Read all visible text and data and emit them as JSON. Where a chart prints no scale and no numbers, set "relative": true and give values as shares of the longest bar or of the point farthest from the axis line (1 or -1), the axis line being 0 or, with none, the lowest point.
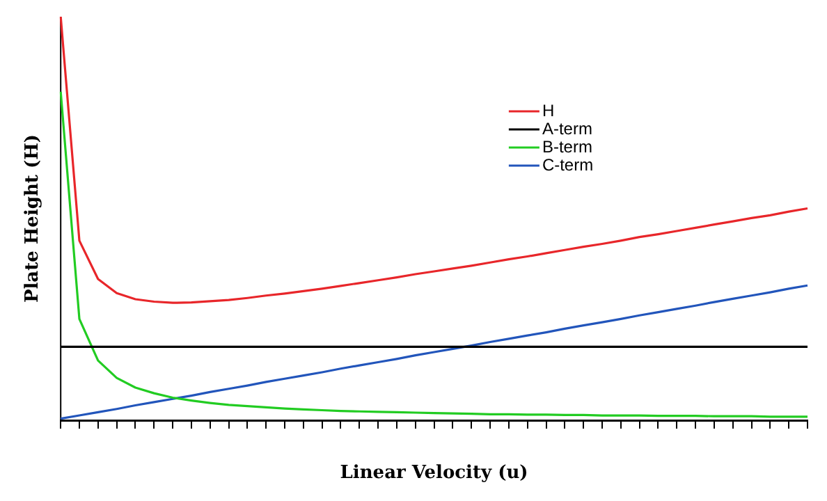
{
  "chart_data": {
    "type": "line",
    "relative": true,
    "xlabel": "Linear Velocity (u)",
    "ylabel": "Plate Height (H)",
    "legend": "top right",
    "marker": "none",
    "categories": [
      null,
      null,
      null,
      null,
      null,
      null,
      null,
      null,
      null,
      null,
      null,
      null,
      null,
      null,
      null,
      null,
      null,
      null,
      null,
      null,
      null,
      null,
      null,
      null,
      null,
      null,
      null,
      null,
      null,
      null,
      null,
      null,
      null,
      null,
      null,
      null,
      null,
      null,
      null,
      null,
      null
    ],
    "series": [
      {
        "name": "H",
        "color": "#e8262a",
        "values": [
          1.0,
          0.445,
          0.35,
          0.315,
          0.3,
          0.294,
          0.291,
          0.292,
          0.295,
          0.298,
          0.303,
          0.309,
          0.314,
          0.32,
          0.326,
          0.333,
          0.34,
          0.347,
          0.354,
          0.362,
          0.369,
          0.376,
          0.383,
          0.391,
          0.399,
          0.406,
          0.414,
          0.422,
          0.43,
          0.437,
          0.445,
          0.454,
          0.461,
          0.469,
          0.477,
          0.485,
          0.493,
          0.501,
          0.508,
          0.517,
          0.525
        ]
      },
      {
        "name": "A-term",
        "color": "#000000",
        "values": [
          0.182,
          0.182,
          0.182,
          0.182,
          0.182,
          0.182,
          0.182,
          0.182,
          0.182,
          0.182,
          0.182,
          0.182,
          0.182,
          0.182,
          0.182,
          0.182,
          0.182,
          0.182,
          0.182,
          0.182,
          0.182,
          0.182,
          0.182,
          0.182,
          0.182,
          0.182,
          0.182,
          0.182,
          0.182,
          0.182,
          0.182,
          0.182,
          0.182,
          0.182,
          0.182,
          0.182,
          0.182,
          0.182,
          0.182,
          0.182,
          0.182
        ]
      },
      {
        "name": "B-term",
        "color": "#22cc22",
        "values": [
          0.814,
          0.251,
          0.148,
          0.105,
          0.081,
          0.067,
          0.056,
          0.049,
          0.043,
          0.038,
          0.035,
          0.032,
          0.029,
          0.027,
          0.025,
          0.023,
          0.022,
          0.021,
          0.02,
          0.019,
          0.018,
          0.017,
          0.016,
          0.015,
          0.015,
          0.014,
          0.014,
          0.013,
          0.013,
          0.012,
          0.012,
          0.012,
          0.011,
          0.011,
          0.011,
          0.01,
          0.01,
          0.01,
          0.009,
          0.009,
          0.009
        ]
      },
      {
        "name": "C-term",
        "color": "#2255bb",
        "values": [
          0.004,
          0.012,
          0.02,
          0.028,
          0.037,
          0.045,
          0.053,
          0.061,
          0.07,
          0.078,
          0.086,
          0.095,
          0.103,
          0.111,
          0.119,
          0.128,
          0.136,
          0.144,
          0.152,
          0.161,
          0.169,
          0.177,
          0.185,
          0.194,
          0.202,
          0.21,
          0.218,
          0.227,
          0.235,
          0.243,
          0.251,
          0.26,
          0.268,
          0.276,
          0.284,
          0.293,
          0.301,
          0.309,
          0.317,
          0.326,
          0.334
        ]
      }
    ]
  }
}
